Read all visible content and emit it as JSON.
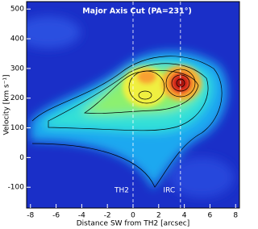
{
  "chart_data": {
    "type": "image",
    "title": "Major Axis Cut (PA=231°)",
    "xlabel": "Distance SW from TH2 [arcsec]",
    "ylabel": "Velocity [km s⁻¹]",
    "xlim": [
      -8.3,
      8.3
    ],
    "ylim": [
      -170,
      525
    ],
    "xticks": [
      -8,
      -6,
      -4,
      -2,
      0,
      2,
      4,
      6,
      8
    ],
    "yticks": [
      -100,
      0,
      100,
      200,
      300,
      400,
      500
    ],
    "annotations": [
      {
        "text": "TH2",
        "x": 0
      },
      {
        "text": "IRC",
        "x": 3.7
      }
    ]
  }
}
